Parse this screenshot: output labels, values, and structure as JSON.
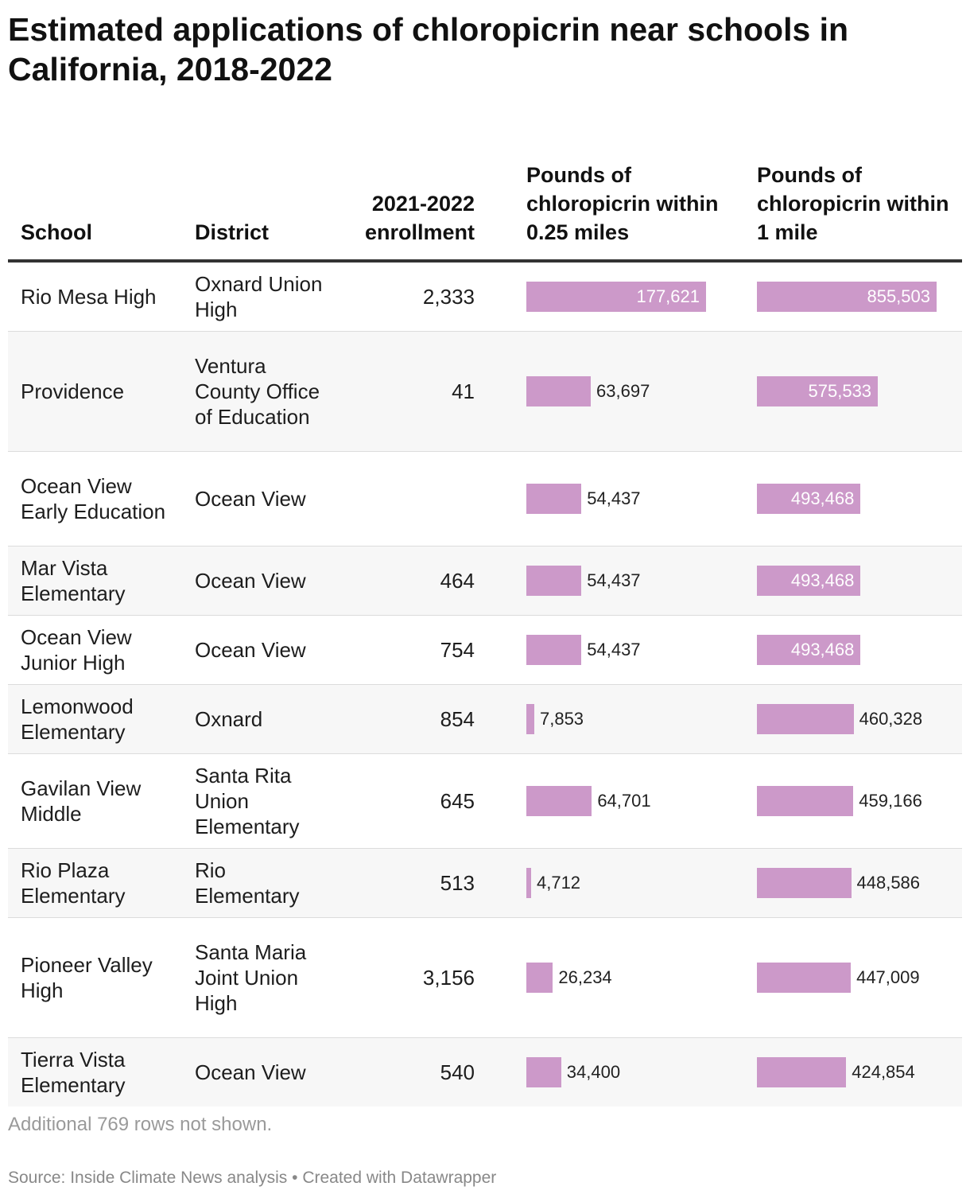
{
  "title": "Estimated applications of chloropicrin near schools in California, 2018-2022",
  "columns": {
    "school": "School",
    "district": "District",
    "enrollment": "2021-2022 enrollment",
    "quarter_mile": "Pounds of chloropicrin within 0.25 miles",
    "one_mile": "Pounds of chloropicrin within 1 mile"
  },
  "colors": {
    "bar": "#cc99c9",
    "row_alt": "#f7f7f7",
    "header_rule": "#333333"
  },
  "chart_data": {
    "type": "table",
    "rows": [
      {
        "school": "Rio Mesa High",
        "district": "Oxnard Union High",
        "enrollment": "2,333",
        "quarter_mile": 177621,
        "quarter_mile_label": "177,621",
        "one_mile": 855503,
        "one_mile_label": "855,503"
      },
      {
        "school": "Providence",
        "district": "Ventura County Office of Education",
        "enrollment": "41",
        "quarter_mile": 63697,
        "quarter_mile_label": "63,697",
        "one_mile": 575533,
        "one_mile_label": "575,533"
      },
      {
        "school": "Ocean View Early Education",
        "district": "Ocean View",
        "enrollment": "",
        "quarter_mile": 54437,
        "quarter_mile_label": "54,437",
        "one_mile": 493468,
        "one_mile_label": "493,468"
      },
      {
        "school": "Mar Vista Elementary",
        "district": "Ocean View",
        "enrollment": "464",
        "quarter_mile": 54437,
        "quarter_mile_label": "54,437",
        "one_mile": 493468,
        "one_mile_label": "493,468"
      },
      {
        "school": "Ocean View Junior High",
        "district": "Ocean View",
        "enrollment": "754",
        "quarter_mile": 54437,
        "quarter_mile_label": "54,437",
        "one_mile": 493468,
        "one_mile_label": "493,468"
      },
      {
        "school": "Lemonwood Elementary",
        "district": "Oxnard",
        "enrollment": "854",
        "quarter_mile": 7853,
        "quarter_mile_label": "7,853",
        "one_mile": 460328,
        "one_mile_label": "460,328"
      },
      {
        "school": "Gavilan View Middle",
        "district": "Santa Rita Union Elementary",
        "enrollment": "645",
        "quarter_mile": 64701,
        "quarter_mile_label": "64,701",
        "one_mile": 459166,
        "one_mile_label": "459,166"
      },
      {
        "school": "Rio Plaza Elementary",
        "district": "Rio Elementary",
        "enrollment": "513",
        "quarter_mile": 4712,
        "quarter_mile_label": "4,712",
        "one_mile": 448586,
        "one_mile_label": "448,586"
      },
      {
        "school": "Pioneer Valley High",
        "district": "Santa Maria Joint Union High",
        "enrollment": "3,156",
        "quarter_mile": 26234,
        "quarter_mile_label": "26,234",
        "one_mile": 447009,
        "one_mile_label": "447,009"
      },
      {
        "school": "Tierra Vista Elementary",
        "district": "Ocean View",
        "enrollment": "540",
        "quarter_mile": 34400,
        "quarter_mile_label": "34,400",
        "one_mile": 424854,
        "one_mile_label": "424,854"
      }
    ]
  },
  "note": "Additional 769 rows not shown.",
  "source": "Source: Inside Climate News analysis • Created with Datawrapper"
}
